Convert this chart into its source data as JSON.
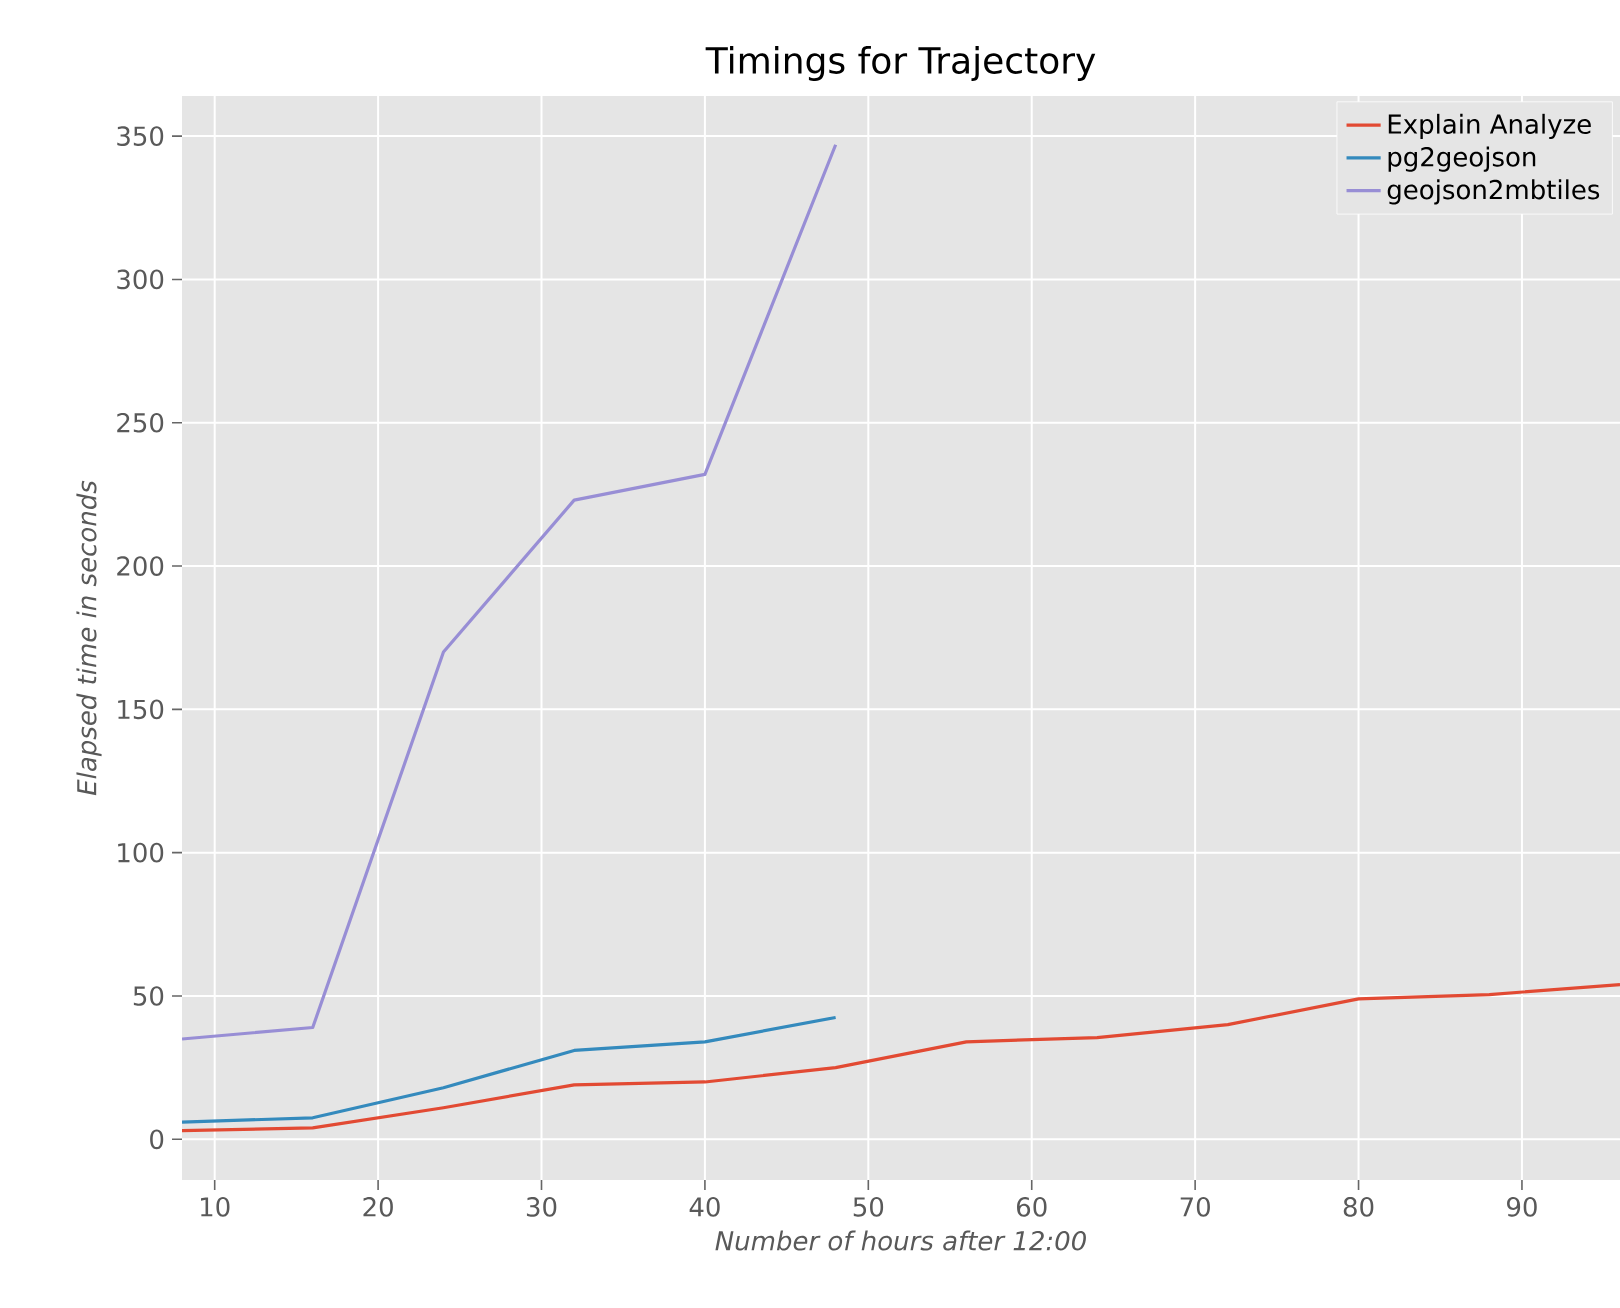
{
  "chart_data": {
    "type": "line",
    "title": "Timings for Trajectory",
    "xlabel": "Number of hours after 12:00",
    "ylabel": "Elapsed time in seconds",
    "x": [
      8,
      16,
      24,
      32,
      40,
      48,
      56,
      64,
      72,
      80,
      88,
      96
    ],
    "series": [
      {
        "name": "Explain Analyze",
        "color": "#e24a33",
        "values": [
          3,
          4,
          11,
          19,
          20,
          25,
          34,
          35.5,
          40,
          49,
          50.5,
          54
        ]
      },
      {
        "name": "pg2geojson",
        "color": "#348abd",
        "x": [
          8,
          16,
          24,
          32,
          40,
          48
        ],
        "values": [
          6,
          7.5,
          18,
          31,
          34,
          42.5
        ]
      },
      {
        "name": "geojson2mbtiles",
        "color": "#988ed5",
        "x": [
          8,
          16,
          24,
          32,
          40,
          48
        ],
        "values": [
          35,
          39,
          170,
          223,
          232,
          347
        ]
      }
    ],
    "xlim": [
      8,
      96
    ],
    "ylim": [
      -14.2,
      364
    ],
    "xticks": [
      10,
      20,
      30,
      40,
      50,
      60,
      70,
      80,
      90
    ],
    "yticks": [
      0,
      50,
      100,
      150,
      200,
      250,
      300,
      350
    ],
    "grid": true,
    "legend": "top right",
    "line_style": "solid"
  }
}
